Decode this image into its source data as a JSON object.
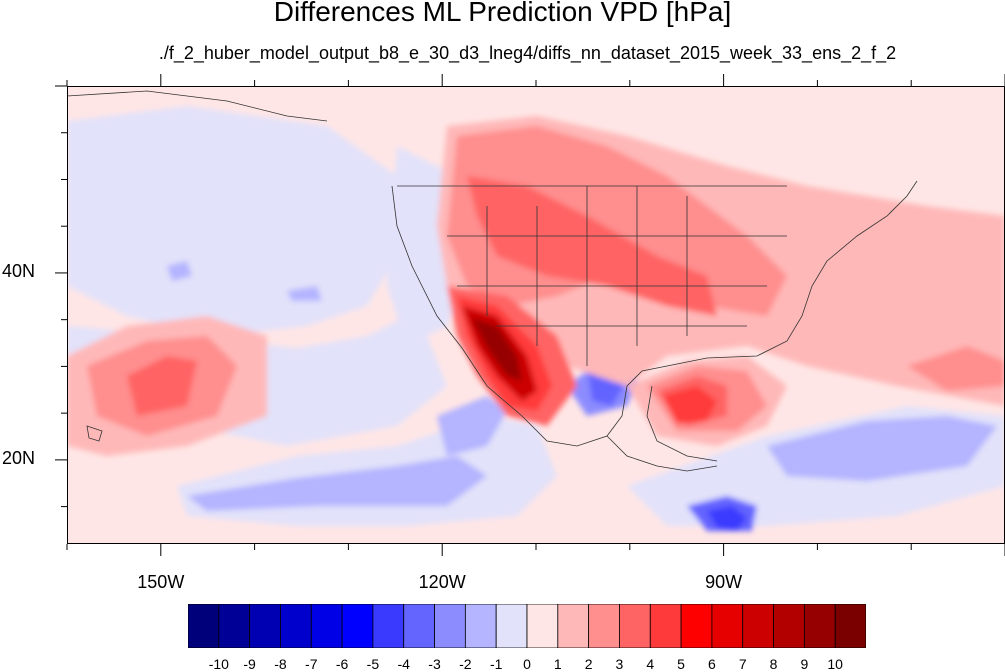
{
  "title": "Differences ML Prediction VPD [hPa]",
  "subtitle": "./f_2_huber_model_output_b8_e_30_d3_lneg4/diffs_nn_dataset_2015_week_33_ens_2_f_2",
  "map": {
    "lon_range": [
      -160,
      -60
    ],
    "lat_range": [
      11,
      60
    ],
    "lat_labels": [
      {
        "label": "40N",
        "lat": 40
      },
      {
        "label": "20N",
        "lat": 20
      }
    ],
    "lon_labels": [
      {
        "label": "150W",
        "lon": -150
      },
      {
        "label": "120W",
        "lon": -120
      },
      {
        "label": "90W",
        "lon": -90
      }
    ]
  },
  "colorbar": {
    "colors": [
      "#00007a",
      "#000096",
      "#0000b2",
      "#0000cc",
      "#0000e6",
      "#0000ff",
      "#3a3aff",
      "#6464ff",
      "#8c8cff",
      "#b4b4ff",
      "#e2e2fa",
      "#ffe6e6",
      "#ffb8b8",
      "#ff8e8e",
      "#ff6464",
      "#ff3a3a",
      "#ff0000",
      "#e60000",
      "#cc0000",
      "#b20000",
      "#960000",
      "#7a0000"
    ],
    "labels": [
      "-10",
      "-9",
      "-8",
      "-7",
      "-6",
      "-5",
      "-4",
      "-3",
      "-2",
      "-1",
      "0",
      "1",
      "2",
      "3",
      "4",
      "5",
      "6",
      "7",
      "8",
      "9",
      "10"
    ]
  }
}
